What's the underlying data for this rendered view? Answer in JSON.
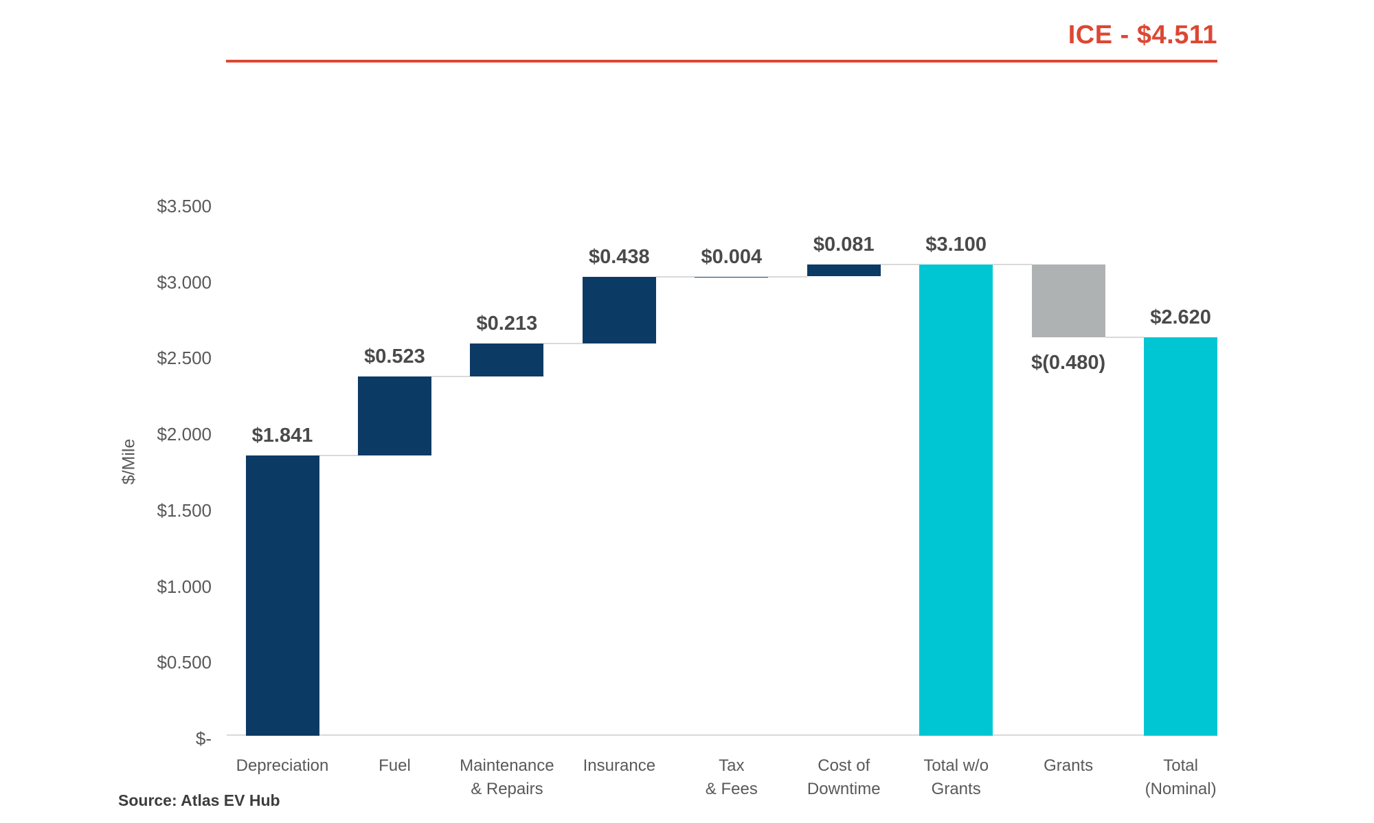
{
  "chart_data": {
    "type": "waterfall",
    "title": "",
    "xlabel": "",
    "ylabel": "$/Mile",
    "ylim": [
      0,
      3.5
    ],
    "grid": false,
    "legend": "none",
    "annotation": {
      "text": "ICE - $4.511",
      "value": 4.511
    },
    "yticks": [
      {
        "label": "$3.500",
        "value": 3.5
      },
      {
        "label": "$3.000",
        "value": 3.0
      },
      {
        "label": "$2.500",
        "value": 2.5
      },
      {
        "label": "$2.000",
        "value": 2.0
      },
      {
        "label": "$1.500",
        "value": 1.5
      },
      {
        "label": "$1.000",
        "value": 1.0
      },
      {
        "label": "$0.500",
        "value": 0.5
      },
      {
        "label": "$-",
        "value": 0
      }
    ],
    "items": [
      {
        "category": "Depreciation",
        "value": 1.841,
        "display": "$1.841",
        "kind": "increase"
      },
      {
        "category": "Fuel",
        "value": 0.523,
        "display": "$0.523",
        "kind": "increase"
      },
      {
        "category": "Maintenance\n& Repairs",
        "value": 0.213,
        "display": "$0.213",
        "kind": "increase"
      },
      {
        "category": "Insurance",
        "value": 0.438,
        "display": "$0.438",
        "kind": "increase"
      },
      {
        "category": "Tax\n& Fees",
        "value": 0.004,
        "display": "$0.004",
        "kind": "increase"
      },
      {
        "category": "Cost of\nDowntime",
        "value": 0.081,
        "display": "$0.081",
        "kind": "increase"
      },
      {
        "category": "Total w/o\nGrants",
        "value": 3.1,
        "display": "$3.100",
        "kind": "total"
      },
      {
        "category": "Grants",
        "value": -0.48,
        "display": "$(0.480)",
        "kind": "decrease"
      },
      {
        "category": "Total\n(Nominal)",
        "value": 2.62,
        "display": "$2.620",
        "kind": "total"
      }
    ]
  },
  "source_note": "Source: Atlas EV Hub",
  "colors": {
    "increase": "#0B3B64",
    "total": "#00C6D3",
    "decrease": "#AFB2B2",
    "annotation": "#DC4733",
    "axis_text": "#595959",
    "value_label_text": "#4A4A4A",
    "connector": "#D9D9D9"
  }
}
